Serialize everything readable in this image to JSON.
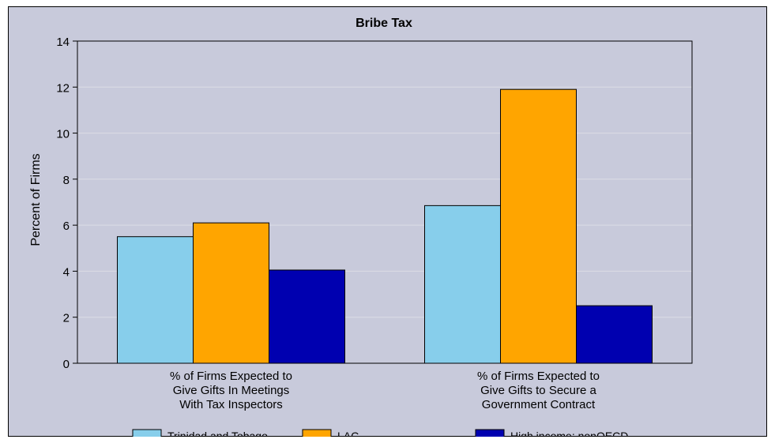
{
  "chart_data": {
    "type": "bar",
    "title": "Bribe Tax",
    "ylabel": "Percent of Firms",
    "xlabel": "",
    "ylim": [
      0,
      14
    ],
    "yticks": [
      0,
      2,
      4,
      6,
      8,
      10,
      12,
      14
    ],
    "grid": true,
    "legend_position": "bottom",
    "categories": [
      [
        "% of Firms Expected to",
        "Give Gifts In Meetings",
        "With Tax Inspectors"
      ],
      [
        "% of Firms Expected to",
        "Give Gifts to Secure a",
        "Government Contract"
      ]
    ],
    "series": [
      {
        "name": "Trinidad and Tobago",
        "color": "#87ceeb",
        "values": [
          5.5,
          6.85
        ]
      },
      {
        "name": "LAC",
        "color": "#ffa500",
        "values": [
          6.1,
          11.9
        ]
      },
      {
        "name": "High income: nonOECD",
        "color": "#0000b0",
        "values": [
          4.05,
          2.5
        ]
      }
    ],
    "colors": {
      "background": "#c8cadb",
      "plot_area": "#c8cadb",
      "grid": "#dcdde6"
    }
  }
}
